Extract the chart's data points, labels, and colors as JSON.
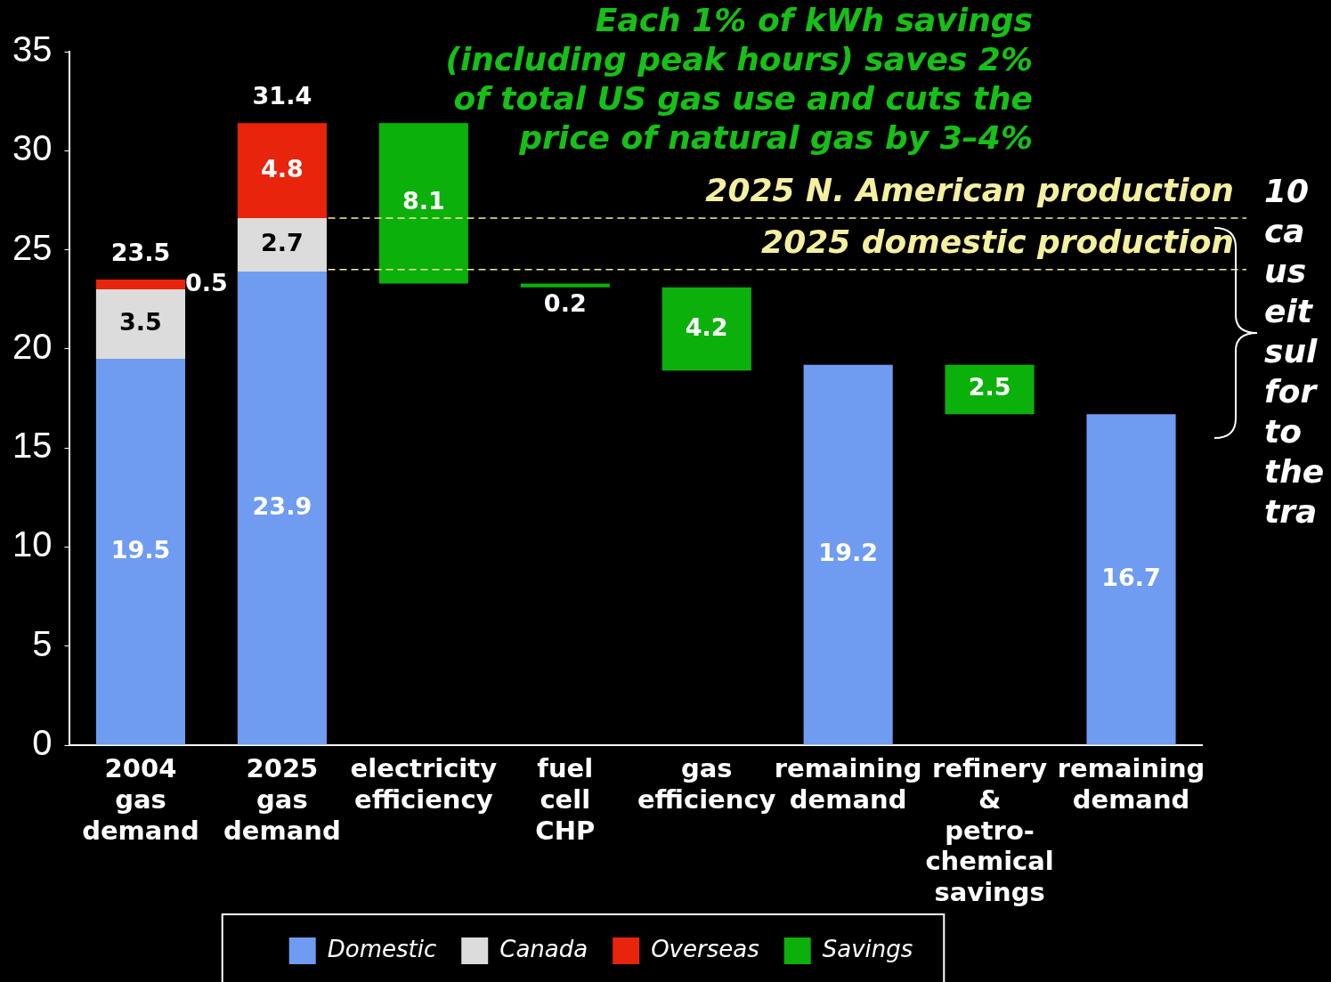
{
  "chart_data": {
    "type": "bar",
    "stacked": true,
    "annotations": [
      "Each 1% of kWh savings\n(including peak hours) saves 2%\nof total US gas use and cuts the\nprice of natural gas by 3–4%",
      "10\nca\nus\neit\nsul\nfor\nto\nthe\ntra"
    ],
    "categories": [
      "2004 gas demand",
      "2025 gas demand",
      "electricity efficiency",
      "fuel cell CHP",
      "gas efficiency",
      "remaining demand",
      "refinery & petro-chemical savings",
      "remaining demand"
    ],
    "series": [
      {
        "name": "Domestic",
        "color": "#6f9cf0",
        "values": [
          19.5,
          23.9,
          null,
          null,
          null,
          19.2,
          null,
          16.7
        ]
      },
      {
        "name": "Canada",
        "color": "#dcdcdc",
        "values": [
          3.5,
          2.7,
          null,
          null,
          null,
          null,
          null,
          null
        ]
      },
      {
        "name": "Overseas",
        "color": "#e8240c",
        "values": [
          0.5,
          4.8,
          null,
          null,
          null,
          null,
          null,
          null
        ]
      },
      {
        "name": "Savings",
        "color": "#0bb00b",
        "values": [
          null,
          null,
          8.1,
          0.2,
          4.2,
          null,
          2.5,
          null
        ],
        "base": [
          null,
          null,
          23.3,
          23.1,
          18.9,
          null,
          16.7,
          null
        ]
      }
    ],
    "totals": [
      "23.5",
      "31.4",
      null,
      null,
      null,
      null,
      null,
      null
    ],
    "data_labels": true,
    "ylim": [
      0,
      35
    ],
    "yticks": [
      0,
      5,
      10,
      15,
      20,
      25,
      30,
      35
    ],
    "ref_lines": [
      {
        "axis": "y",
        "value": 26.6,
        "label": "2025 N. American production",
        "color": "#f5f0a0",
        "line_style": "dashed"
      },
      {
        "axis": "y",
        "value": 24,
        "label": "2025 domestic production",
        "color": "#f5f0a0",
        "line_style": "dashed"
      }
    ],
    "grid": false,
    "legend": "bottom"
  }
}
